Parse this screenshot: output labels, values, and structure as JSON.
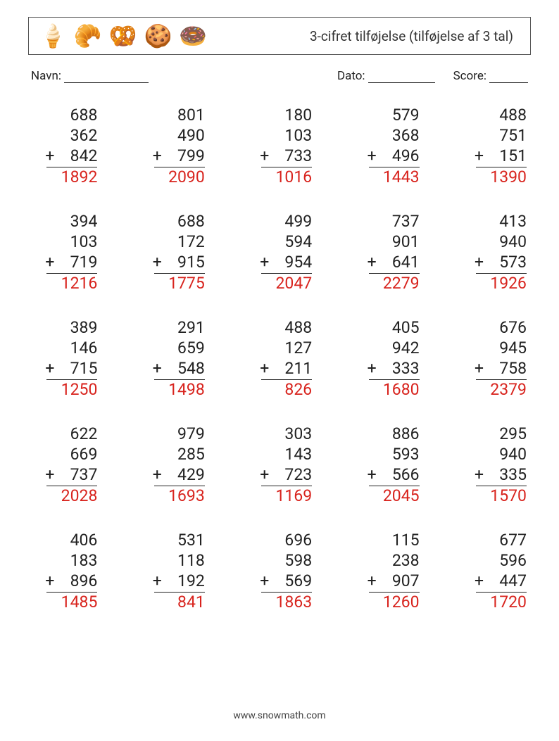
{
  "header": {
    "icons": [
      "🍦",
      "🥐",
      "🥨",
      "🍪",
      "🍩"
    ],
    "title": "3-cifret tilføjelse (tilføjelse af 3 tal)"
  },
  "meta": {
    "name_label": "Navn:",
    "date_label": "Dato:",
    "score_label": "Score:"
  },
  "styles": {
    "number_color": "#222222",
    "answer_color": "#d8231d",
    "border_color": "#555555",
    "font_size_numbers": 23,
    "font_size_title": 19,
    "columns": 5,
    "rows": 5
  },
  "problems": [
    [
      {
        "a": 688,
        "b": 362,
        "c": 842,
        "ans": 1892
      },
      {
        "a": 801,
        "b": 490,
        "c": 799,
        "ans": 2090
      },
      {
        "a": 180,
        "b": 103,
        "c": 733,
        "ans": 1016
      },
      {
        "a": 579,
        "b": 368,
        "c": 496,
        "ans": 1443
      },
      {
        "a": 488,
        "b": 751,
        "c": 151,
        "ans": 1390
      }
    ],
    [
      {
        "a": 394,
        "b": 103,
        "c": 719,
        "ans": 1216
      },
      {
        "a": 688,
        "b": 172,
        "c": 915,
        "ans": 1775
      },
      {
        "a": 499,
        "b": 594,
        "c": 954,
        "ans": 2047
      },
      {
        "a": 737,
        "b": 901,
        "c": 641,
        "ans": 2279
      },
      {
        "a": 413,
        "b": 940,
        "c": 573,
        "ans": 1926
      }
    ],
    [
      {
        "a": 389,
        "b": 146,
        "c": 715,
        "ans": 1250
      },
      {
        "a": 291,
        "b": 659,
        "c": 548,
        "ans": 1498
      },
      {
        "a": 488,
        "b": 127,
        "c": 211,
        "ans": 826
      },
      {
        "a": 405,
        "b": 942,
        "c": 333,
        "ans": 1680
      },
      {
        "a": 676,
        "b": 945,
        "c": 758,
        "ans": 2379
      }
    ],
    [
      {
        "a": 622,
        "b": 669,
        "c": 737,
        "ans": 2028
      },
      {
        "a": 979,
        "b": 285,
        "c": 429,
        "ans": 1693
      },
      {
        "a": 303,
        "b": 143,
        "c": 723,
        "ans": 1169
      },
      {
        "a": 886,
        "b": 593,
        "c": 566,
        "ans": 2045
      },
      {
        "a": 295,
        "b": 940,
        "c": 335,
        "ans": 1570
      }
    ],
    [
      {
        "a": 406,
        "b": 183,
        "c": 896,
        "ans": 1485
      },
      {
        "a": 531,
        "b": 118,
        "c": 192,
        "ans": 841
      },
      {
        "a": 696,
        "b": 598,
        "c": 569,
        "ans": 1863
      },
      {
        "a": 115,
        "b": 238,
        "c": 907,
        "ans": 1260
      },
      {
        "a": 677,
        "b": 596,
        "c": 447,
        "ans": 1720
      }
    ]
  ],
  "footer": "www.snowmath.com"
}
